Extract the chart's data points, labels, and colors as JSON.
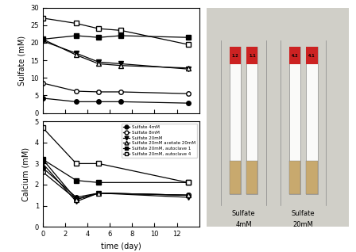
{
  "sulfate": {
    "days": [
      0,
      3,
      5,
      7,
      13
    ],
    "sulfate_4mM": [
      4.2,
      3.2,
      3.2,
      3.2,
      2.8
    ],
    "sulfate_8mM": [
      8.5,
      6.2,
      6.0,
      6.0,
      5.5
    ],
    "sulfate_20mM": [
      20.5,
      17.0,
      14.5,
      14.0,
      12.5
    ],
    "sulfate_20mM_acetate": [
      21.0,
      16.5,
      14.0,
      13.5,
      12.8
    ],
    "sulfate_20mM_auto1": [
      21.0,
      22.0,
      21.5,
      22.0,
      21.5
    ],
    "sulfate_20mM_auto4": [
      27.0,
      25.5,
      24.0,
      23.5,
      19.5
    ]
  },
  "calcium": {
    "days": [
      0,
      3,
      5,
      13
    ],
    "ca_4mM": [
      2.8,
      1.4,
      1.6,
      1.5
    ],
    "ca_8mM": [
      2.6,
      1.3,
      1.6,
      1.5
    ],
    "ca_20mM": [
      3.0,
      1.2,
      1.6,
      1.4
    ],
    "ca_20mM_acetate": [
      3.2,
      1.3,
      1.6,
      1.5
    ],
    "ca_20mM_auto1": [
      3.2,
      2.2,
      2.1,
      2.1
    ],
    "ca_20mM_auto4": [
      4.7,
      3.0,
      3.0,
      2.1
    ]
  },
  "legend_labels": [
    "Sulfate 4mM",
    "Sulfate 8mM",
    "Sulfate 20mM",
    "Sulfate 20mM acetate 20mM",
    "Sulfate 20mM, autoclave 1",
    "Sulfate 20mM, autoclave 4"
  ],
  "xlabel": "time (day)",
  "ylabel_top": "Sulfate (mM)",
  "ylabel_bottom": "Calcium (mM)",
  "xlim": [
    0,
    14
  ],
  "ylim_sulfate": [
    0,
    30
  ],
  "ylim_calcium": [
    0,
    5
  ],
  "xticks": [
    0,
    2,
    4,
    6,
    8,
    10,
    12
  ],
  "yticks_sulfate": [
    0,
    5,
    10,
    15,
    20,
    25,
    30
  ],
  "yticks_calcium": [
    0,
    1,
    2,
    3,
    4,
    5
  ]
}
